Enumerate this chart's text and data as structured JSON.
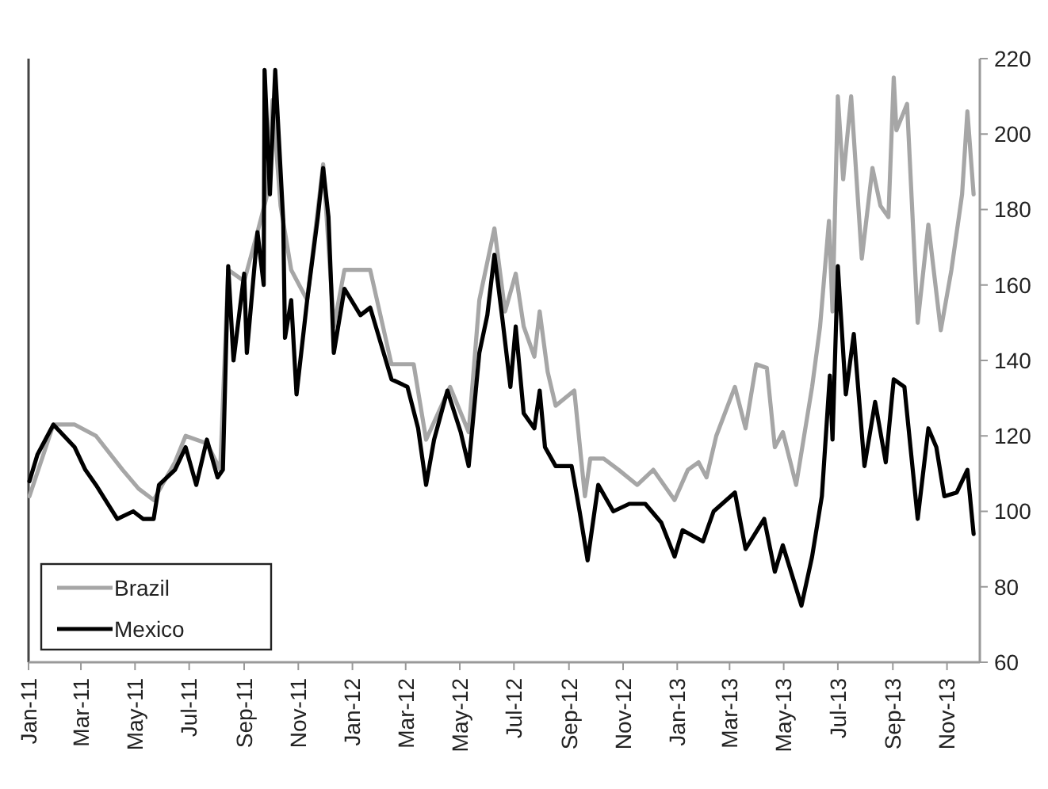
{
  "chart_data": {
    "type": "line",
    "xlim": [
      "2011-01-01",
      "2013-12-08"
    ],
    "ylim": [
      60,
      220
    ],
    "yticks": [
      60,
      80,
      100,
      120,
      140,
      160,
      180,
      200,
      220
    ],
    "xticks": [
      {
        "value": "2011-01-01",
        "label": "Jan-11"
      },
      {
        "value": "2011-03-01",
        "label": "Mar-11"
      },
      {
        "value": "2011-05-01",
        "label": "May-11"
      },
      {
        "value": "2011-07-01",
        "label": "Jul-11"
      },
      {
        "value": "2011-09-01",
        "label": "Sep-11"
      },
      {
        "value": "2011-11-01",
        "label": "Nov-11"
      },
      {
        "value": "2012-01-01",
        "label": "Jan-12"
      },
      {
        "value": "2012-03-01",
        "label": "Mar-12"
      },
      {
        "value": "2012-05-01",
        "label": "May-12"
      },
      {
        "value": "2012-07-01",
        "label": "Jul-12"
      },
      {
        "value": "2012-09-01",
        "label": "Sep-12"
      },
      {
        "value": "2012-11-01",
        "label": "Nov-12"
      },
      {
        "value": "2013-01-01",
        "label": "Jan-13"
      },
      {
        "value": "2013-03-01",
        "label": "Mar-13"
      },
      {
        "value": "2013-05-01",
        "label": "May-13"
      },
      {
        "value": "2013-07-01",
        "label": "Jul-13"
      },
      {
        "value": "2013-09-01",
        "label": "Sep-13"
      },
      {
        "value": "2013-11-01",
        "label": "Nov-13"
      }
    ],
    "legend": "bottom left",
    "grid": false,
    "marker": "none",
    "line_style": "solid",
    "series": [
      {
        "name": "Brazil",
        "color": "#a6a6a6",
        "x": [
          "2011-01-02",
          "2011-01-29",
          "2011-02-22",
          "2011-03-18",
          "2011-04-17",
          "2011-05-05",
          "2011-05-22",
          "2011-06-15",
          "2011-06-27",
          "2011-07-21",
          "2011-08-05",
          "2011-08-14",
          "2011-09-01",
          "2011-09-16",
          "2011-09-27",
          "2011-10-03",
          "2011-10-12",
          "2011-10-24",
          "2011-11-11",
          "2011-11-29",
          "2011-12-11",
          "2011-12-23",
          "2012-01-21",
          "2012-02-14",
          "2012-03-10",
          "2012-03-24",
          "2012-04-20",
          "2012-05-11",
          "2012-05-23",
          "2012-06-09",
          "2012-06-21",
          "2012-07-03",
          "2012-07-12",
          "2012-07-24",
          "2012-07-30",
          "2012-08-08",
          "2012-08-17",
          "2012-09-07",
          "2012-09-19",
          "2012-09-25",
          "2012-10-10",
          "2012-10-27",
          "2012-11-17",
          "2012-12-05",
          "2012-12-29",
          "2013-01-13",
          "2013-01-25",
          "2013-02-03",
          "2013-02-14",
          "2013-03-07",
          "2013-03-19",
          "2013-03-31",
          "2013-04-12",
          "2013-04-21",
          "2013-04-30",
          "2013-05-15",
          "2013-06-02",
          "2013-06-11",
          "2013-06-21",
          "2013-06-25",
          "2013-07-01",
          "2013-07-07",
          "2013-07-16",
          "2013-07-28",
          "2013-08-09",
          "2013-08-18",
          "2013-08-27",
          "2013-09-02",
          "2013-09-05",
          "2013-09-17",
          "2013-09-29",
          "2013-10-11",
          "2013-10-25",
          "2013-11-06",
          "2013-11-18",
          "2013-11-24",
          "2013-12-01"
        ],
        "values": [
          104,
          123,
          123,
          120,
          111,
          106,
          103,
          113,
          120,
          118,
          111,
          164,
          161,
          174,
          184,
          209,
          181,
          164,
          156,
          192,
          149,
          164,
          164,
          139,
          139,
          119,
          133,
          121,
          156,
          175,
          153,
          163,
          149,
          141,
          153,
          137,
          128,
          132,
          104,
          114,
          114,
          111,
          107,
          111,
          103,
          111,
          113,
          109,
          120,
          133,
          122,
          139,
          138,
          117,
          121,
          107,
          133,
          149,
          177,
          153,
          210,
          188,
          210,
          167,
          191,
          181,
          178,
          215,
          201,
          208,
          150,
          176,
          148,
          164,
          184,
          206,
          184
        ]
      },
      {
        "name": "Mexico",
        "color": "#000000",
        "x": [
          "2011-01-02",
          "2011-01-11",
          "2011-01-29",
          "2011-02-10",
          "2011-02-22",
          "2011-03-06",
          "2011-03-18",
          "2011-04-11",
          "2011-04-29",
          "2011-05-10",
          "2011-05-22",
          "2011-05-28",
          "2011-06-15",
          "2011-06-27",
          "2011-07-09",
          "2011-07-21",
          "2011-08-02",
          "2011-08-08",
          "2011-08-14",
          "2011-08-20",
          "2011-09-01",
          "2011-09-04",
          "2011-09-16",
          "2011-09-23",
          "2011-09-24",
          "2011-09-30",
          "2011-10-06",
          "2011-10-15",
          "2011-10-17",
          "2011-10-24",
          "2011-10-30",
          "2011-11-11",
          "2011-11-23",
          "2011-11-29",
          "2011-12-05",
          "2011-12-11",
          "2011-12-23",
          "2012-01-10",
          "2012-01-21",
          "2012-02-14",
          "2012-03-03",
          "2012-03-15",
          "2012-03-24",
          "2012-04-02",
          "2012-04-17",
          "2012-05-02",
          "2012-05-11",
          "2012-05-23",
          "2012-06-01",
          "2012-06-09",
          "2012-06-18",
          "2012-06-27",
          "2012-07-03",
          "2012-07-12",
          "2012-07-24",
          "2012-07-30",
          "2012-08-05",
          "2012-08-17",
          "2012-09-04",
          "2012-09-13",
          "2012-09-22",
          "2012-10-04",
          "2012-10-21",
          "2012-11-08",
          "2012-11-26",
          "2012-12-14",
          "2012-12-29",
          "2013-01-07",
          "2013-01-30",
          "2013-02-11",
          "2013-03-07",
          "2013-03-19",
          "2013-04-09",
          "2013-04-21",
          "2013-04-30",
          "2013-05-21",
          "2013-06-02",
          "2013-06-13",
          "2013-06-22",
          "2013-06-25",
          "2013-07-01",
          "2013-07-10",
          "2013-07-19",
          "2013-07-31",
          "2013-08-12",
          "2013-08-24",
          "2013-09-02",
          "2013-09-14",
          "2013-09-29",
          "2013-10-11",
          "2013-10-20",
          "2013-10-29",
          "2013-11-12",
          "2013-11-24",
          "2013-12-01"
        ],
        "values": [
          108,
          115,
          123,
          120,
          117,
          111,
          107,
          98,
          100,
          98,
          98,
          107,
          111,
          117,
          107,
          119,
          109,
          111,
          165,
          140,
          163,
          142,
          174,
          160,
          217,
          184,
          217,
          177,
          146,
          156,
          131,
          156,
          178,
          191,
          178,
          142,
          159,
          152,
          154,
          135,
          133,
          122,
          107,
          119,
          132,
          121,
          112,
          142,
          152,
          168,
          151,
          133,
          149,
          126,
          122,
          132,
          117,
          112,
          112,
          100,
          87,
          107,
          100,
          102,
          102,
          97,
          88,
          95,
          92,
          100,
          105,
          90,
          98,
          84,
          91,
          75,
          88,
          104,
          136,
          119,
          165,
          131,
          147,
          112,
          129,
          113,
          135,
          133,
          98,
          122,
          117,
          104,
          105,
          111,
          94
        ]
      }
    ]
  }
}
